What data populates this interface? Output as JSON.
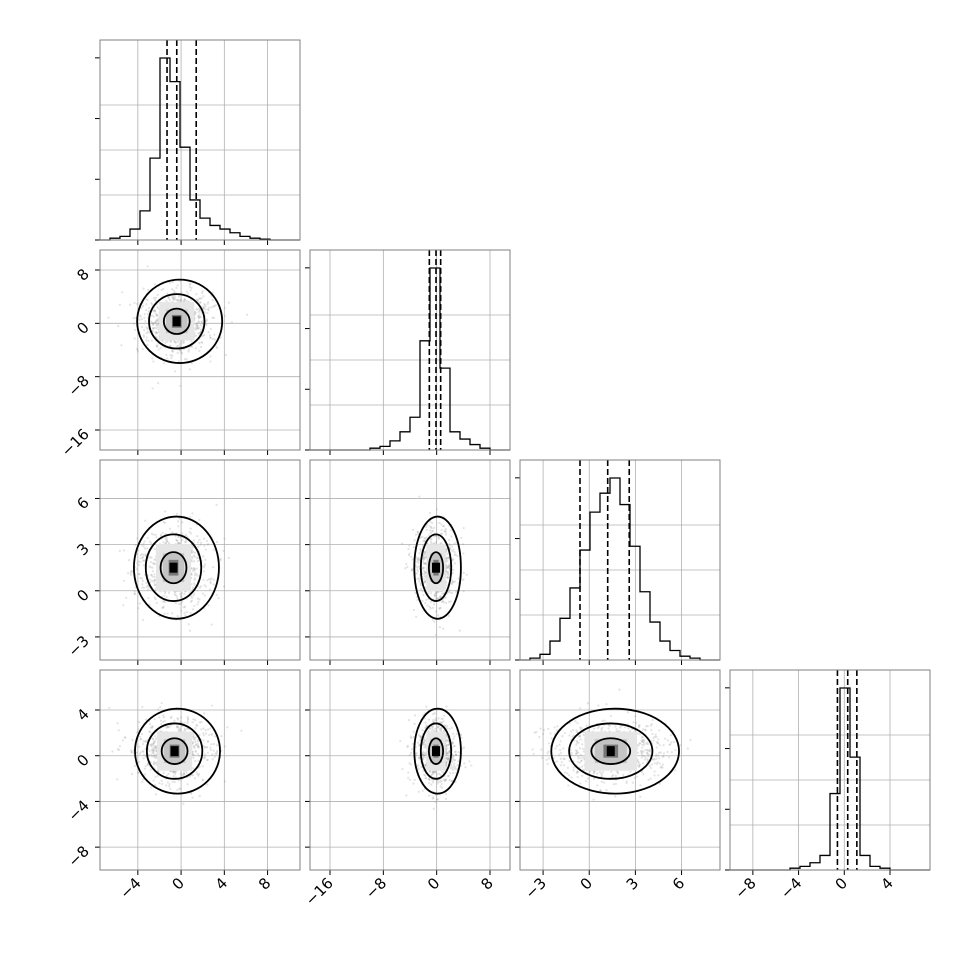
{
  "chart_data": {
    "type": "corner",
    "n_params": 4,
    "ranges": [
      [
        -7.5,
        11
      ],
      [
        -19,
        11
      ],
      [
        -4.5,
        8.5
      ],
      [
        -10,
        7.5
      ]
    ],
    "ticks": [
      [
        -4,
        0,
        4,
        8
      ],
      [
        -16,
        -8,
        0,
        8
      ],
      [
        -3,
        0,
        3,
        6
      ],
      [
        -8,
        -4,
        0,
        4
      ]
    ],
    "tick_labels": [
      [
        "−4",
        "0",
        "4",
        "8"
      ],
      [
        "−16",
        "−8",
        "0",
        "8"
      ],
      [
        "−3",
        "0",
        "3",
        "6"
      ],
      [
        "−8",
        "−4",
        "0",
        "4"
      ]
    ],
    "histograms": [
      {
        "edges_start": -7.5,
        "bin_width": 0.925,
        "counts": [
          0,
          1,
          2,
          6,
          16,
          45,
          100,
          87,
          51,
          22,
          12,
          8,
          6,
          4,
          2,
          1,
          0.5,
          0,
          0,
          0
        ]
      },
      {
        "edges_start": -19,
        "bin_width": 1.5,
        "counts": [
          0,
          0,
          0,
          0,
          0,
          0,
          1,
          2,
          5,
          10,
          18,
          60,
          100,
          45,
          10,
          6,
          3,
          1,
          0,
          0
        ]
      },
      {
        "edges_start": -4.5,
        "bin_width": 0.65,
        "counts": [
          0,
          1,
          3,
          10,
          22,
          38,
          58,
          78,
          88,
          96,
          82,
          60,
          36,
          20,
          10,
          5,
          2,
          1,
          0,
          0
        ]
      },
      {
        "edges_start": -10,
        "bin_width": 0.875,
        "counts": [
          0,
          0,
          0,
          0,
          0,
          0,
          1,
          2,
          4,
          8,
          42,
          100,
          62,
          8,
          2,
          1,
          0,
          0,
          0,
          0
        ]
      }
    ],
    "quantiles": [
      [
        -1.3,
        -0.4,
        1.4
      ],
      [
        -1.1,
        -0.1,
        0.6
      ],
      [
        -0.6,
        1.2,
        2.6
      ],
      [
        -0.6,
        0.3,
        1.1
      ]
    ],
    "modes": {
      "1-0": [
        -0.4,
        0.3
      ],
      "2-0": [
        -0.7,
        1.5
      ],
      "2-1": [
        -0.1,
        1.5
      ],
      "3-0": [
        -0.6,
        0.4
      ],
      "3-1": [
        -0.1,
        0.4
      ],
      "3-2": [
        1.4,
        0.4
      ]
    },
    "grid": true
  }
}
